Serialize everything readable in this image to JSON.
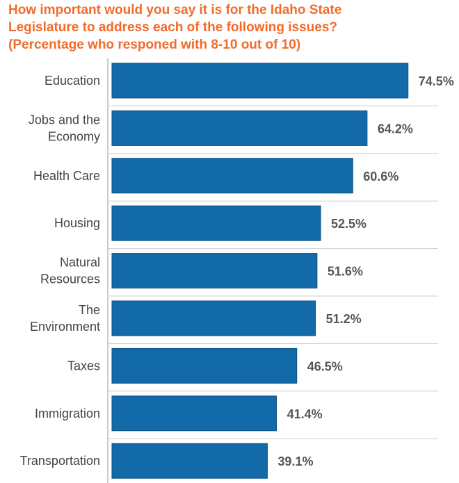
{
  "chart_data": {
    "type": "bar",
    "orientation": "horizontal",
    "title_lines": [
      "How important would you say it is for the Idaho State",
      "Legislature to address each of the following issues?",
      "(Percentage who responed with 8-10 out of 10)"
    ],
    "categories": [
      [
        "Education"
      ],
      [
        "Jobs and the",
        "Economy"
      ],
      [
        "Health Care"
      ],
      [
        "Housing"
      ],
      [
        "Natural",
        "Resources"
      ],
      [
        "The",
        "Environment"
      ],
      [
        "Taxes"
      ],
      [
        "Immigration"
      ],
      [
        "Transportation"
      ]
    ],
    "values": [
      74.5,
      64.2,
      60.6,
      52.5,
      51.6,
      51.2,
      46.5,
      41.4,
      39.1
    ],
    "value_labels": [
      "74.5%",
      "64.2%",
      "60.6%",
      "52.5%",
      "51.6%",
      "51.2%",
      "46.5%",
      "41.4%",
      "39.1%"
    ],
    "xlim": [
      0,
      77
    ],
    "bar_color": "#126aa8",
    "title_color": "#f26b2b",
    "grid": true
  }
}
